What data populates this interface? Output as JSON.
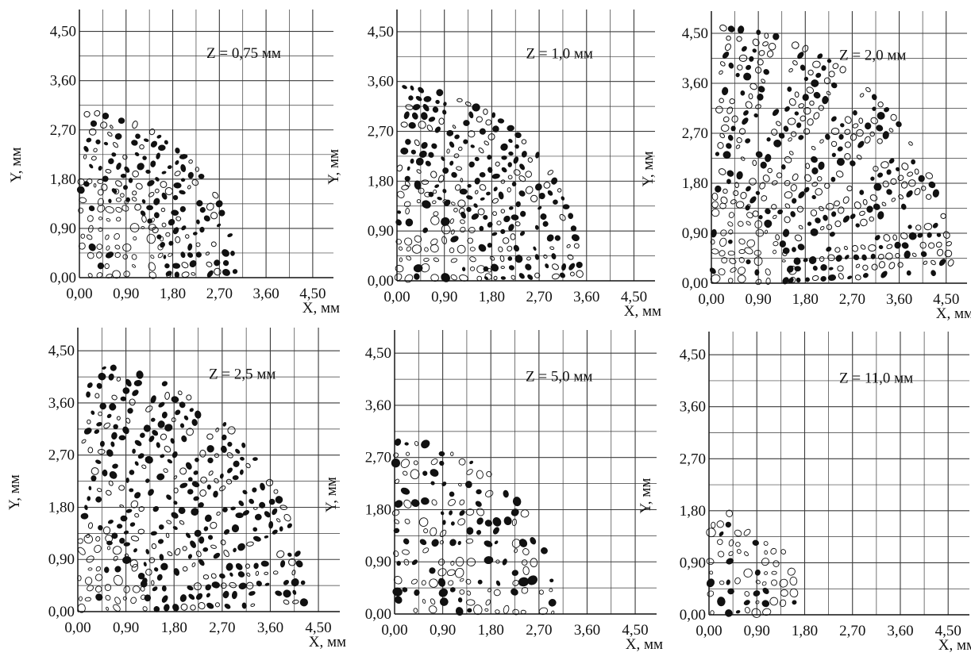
{
  "figure": {
    "style": {
      "ink": "#111111",
      "grid": "#3a3a3a",
      "background": "#ffffff"
    }
  },
  "chart_data": [
    {
      "type": "scatter",
      "annotation": "Z = 0,75 мм",
      "z_mm": 0.75,
      "xlabel": "X, мм",
      "ylabel": "Y, мм",
      "xticks": [
        "0,00",
        "0,90",
        "1,80",
        "2,70",
        "3,60",
        "4,50"
      ],
      "yticks": [
        "0,00",
        "0,90",
        "1,80",
        "2,70",
        "3,60",
        "4,50"
      ],
      "xlim": [
        0,
        4.9
      ],
      "ylim": [
        0,
        4.9
      ],
      "grid": true,
      "pattern": {
        "rays": 5,
        "outer_radius": 3.1,
        "inner_radius": 1.8,
        "gap_fraction": 0.22
      }
    },
    {
      "type": "scatter",
      "annotation": "Z = 1,0 мм",
      "z_mm": 1.0,
      "xlabel": "X, мм",
      "ylabel": "Y, мм",
      "xticks": [
        "0,00",
        "0,90",
        "1,80",
        "2,70",
        "3,60",
        "4,50"
      ],
      "yticks": [
        "0,00",
        "0,90",
        "1,80",
        "2,70",
        "3,60",
        "4,50"
      ],
      "xlim": [
        0,
        4.9
      ],
      "ylim": [
        0,
        4.9
      ],
      "grid": true,
      "pattern": {
        "rays": 5,
        "outer_radius": 3.6,
        "inner_radius": 1.8,
        "gap_fraction": 0.2
      }
    },
    {
      "type": "scatter",
      "annotation": "Z = 2,0 мм",
      "z_mm": 2.0,
      "xlabel": "X, мм",
      "ylabel": "Y, мм",
      "xticks": [
        "0,00",
        "0,90",
        "1,80",
        "2,70",
        "3,60",
        "4,50"
      ],
      "yticks": [
        "0,00",
        "0,90",
        "1,80",
        "2,70",
        "3,60",
        "4,50"
      ],
      "xlim": [
        0,
        4.9
      ],
      "ylim": [
        0,
        4.9
      ],
      "grid": true,
      "pattern": {
        "rays": 5,
        "outer_radius": 4.75,
        "inner_radius": 1.6,
        "gap_fraction": 0.28
      }
    },
    {
      "type": "scatter",
      "annotation": "Z = 2,5 мм",
      "z_mm": 2.5,
      "xlabel": "X, мм",
      "ylabel": "Y, мм",
      "xticks": [
        "0,00",
        "0,90",
        "1,80",
        "2,70",
        "3,60",
        "4,50"
      ],
      "yticks": [
        "0,00",
        "0,90",
        "1,80",
        "2,70",
        "3,60",
        "4,50"
      ],
      "xlim": [
        0,
        4.9
      ],
      "ylim": [
        0,
        4.9
      ],
      "grid": true,
      "pattern": {
        "rays": 5,
        "outer_radius": 4.35,
        "inner_radius": 1.4,
        "gap_fraction": 0.25
      }
    },
    {
      "type": "scatter",
      "annotation": "Z = 5,0 мм",
      "z_mm": 5.0,
      "xlabel": "X, мм",
      "ylabel": "Y, мм",
      "xticks": [
        "0,00",
        "0,90",
        "1,80",
        "2,70",
        "3,60",
        "4,50"
      ],
      "yticks": [
        "0,00",
        "0,90",
        "1,80",
        "2,70",
        "3,60",
        "4,50"
      ],
      "xlim": [
        0,
        4.9
      ],
      "ylim": [
        0,
        4.9
      ],
      "grid": true,
      "pattern": {
        "rays": 5,
        "outer_radius": 3.0,
        "inner_radius": 0,
        "gap_fraction": 0.08
      }
    },
    {
      "type": "scatter",
      "annotation": "Z = 11,0 мм",
      "z_mm": 11.0,
      "xlabel": "X, мм",
      "ylabel": "Y, мм",
      "xticks": [
        "0,00",
        "0,90",
        "1,80",
        "2,70",
        "3,60",
        "4,50"
      ],
      "yticks": [
        "0,00",
        "0,90",
        "1,80",
        "2,70",
        "3,60",
        "4,50"
      ],
      "xlim": [
        0,
        4.9
      ],
      "ylim": [
        0,
        4.9
      ],
      "grid": true,
      "pattern": {
        "rays": 5,
        "outer_radius": 1.8,
        "inner_radius": 0,
        "gap_fraction": 0.0
      }
    }
  ]
}
